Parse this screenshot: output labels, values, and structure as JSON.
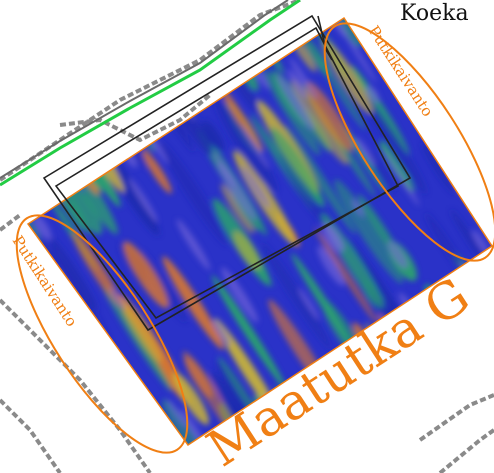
{
  "map": {
    "labels": {
      "corner_title": "Koeka",
      "trench_top_right": "Putkikaivanto",
      "trench_left": "Putkikaivanto",
      "survey_name": "Maatutka G"
    },
    "colors": {
      "radar_base": "#2a32c8",
      "radar_low": "#1e2ab0",
      "radar_mid": "#2aa070",
      "radar_high": "#c8b23a",
      "radar_peak": "#e07a2a",
      "annotation": "#f07f14",
      "outline": "#222222",
      "road_edge": "#22cc44",
      "hatch": "#8a8a8a"
    },
    "icons": [
      "trench-ellipse-icon",
      "test-pit-outline-icon"
    ]
  }
}
